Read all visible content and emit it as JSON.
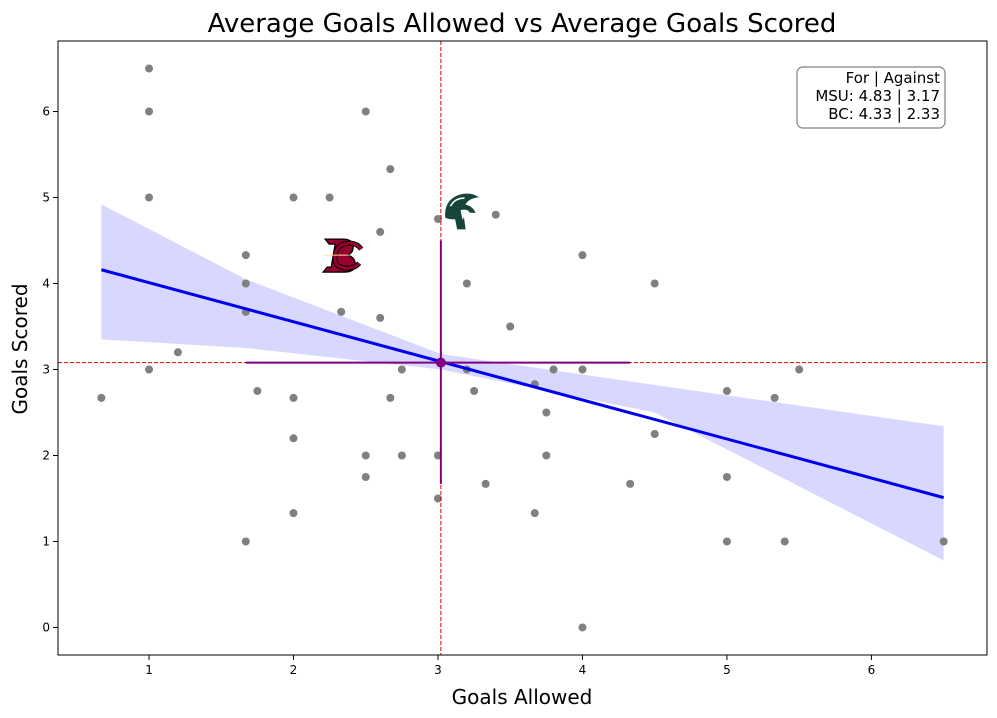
{
  "chart_data": {
    "type": "scatter",
    "title": "Average Goals Allowed vs Average Goals Scored",
    "xlabel": "Goals Allowed",
    "ylabel": "Goals Scored",
    "xlim": [
      0.37,
      6.8
    ],
    "ylim": [
      -0.32,
      6.82
    ],
    "xticks": [
      1,
      2,
      3,
      4,
      5,
      6
    ],
    "yticks": [
      0,
      1,
      2,
      3,
      4,
      5,
      6
    ],
    "grid": false,
    "colors": {
      "points": "#808080",
      "regression": "#0000ee",
      "band": "#d8d8ff",
      "mean_lines": "#dd0000",
      "cross": "#800080"
    },
    "points": [
      {
        "x": 0.67,
        "y": 2.67
      },
      {
        "x": 1.0,
        "y": 6.5
      },
      {
        "x": 1.0,
        "y": 6.0
      },
      {
        "x": 1.0,
        "y": 5.0
      },
      {
        "x": 1.0,
        "y": 3.0
      },
      {
        "x": 1.2,
        "y": 3.2
      },
      {
        "x": 1.67,
        "y": 4.33
      },
      {
        "x": 1.67,
        "y": 4.0
      },
      {
        "x": 1.67,
        "y": 3.67
      },
      {
        "x": 1.67,
        "y": 1.0
      },
      {
        "x": 1.75,
        "y": 2.75
      },
      {
        "x": 2.0,
        "y": 5.0
      },
      {
        "x": 2.0,
        "y": 2.67
      },
      {
        "x": 2.0,
        "y": 2.2
      },
      {
        "x": 2.0,
        "y": 1.33
      },
      {
        "x": 2.25,
        "y": 5.0
      },
      {
        "x": 2.33,
        "y": 3.67
      },
      {
        "x": 2.5,
        "y": 6.0
      },
      {
        "x": 2.5,
        "y": 2.0
      },
      {
        "x": 2.5,
        "y": 1.75
      },
      {
        "x": 2.6,
        "y": 4.6
      },
      {
        "x": 2.6,
        "y": 3.6
      },
      {
        "x": 2.67,
        "y": 5.33
      },
      {
        "x": 2.67,
        "y": 2.67
      },
      {
        "x": 2.75,
        "y": 3.0
      },
      {
        "x": 2.75,
        "y": 2.0
      },
      {
        "x": 3.0,
        "y": 4.75
      },
      {
        "x": 3.0,
        "y": 2.0
      },
      {
        "x": 3.0,
        "y": 1.5
      },
      {
        "x": 3.2,
        "y": 4.0
      },
      {
        "x": 3.2,
        "y": 3.0
      },
      {
        "x": 3.25,
        "y": 2.75
      },
      {
        "x": 3.33,
        "y": 1.67
      },
      {
        "x": 3.4,
        "y": 4.8
      },
      {
        "x": 3.5,
        "y": 3.5
      },
      {
        "x": 3.67,
        "y": 2.83
      },
      {
        "x": 3.67,
        "y": 1.33
      },
      {
        "x": 3.75,
        "y": 2.5
      },
      {
        "x": 3.75,
        "y": 2.0
      },
      {
        "x": 3.8,
        "y": 3.0
      },
      {
        "x": 4.0,
        "y": 4.33
      },
      {
        "x": 4.0,
        "y": 3.0
      },
      {
        "x": 4.0,
        "y": 0.0
      },
      {
        "x": 4.33,
        "y": 1.67
      },
      {
        "x": 4.5,
        "y": 4.0
      },
      {
        "x": 4.5,
        "y": 2.25
      },
      {
        "x": 5.0,
        "y": 2.75
      },
      {
        "x": 5.0,
        "y": 1.75
      },
      {
        "x": 5.0,
        "y": 1.0
      },
      {
        "x": 5.33,
        "y": 2.67
      },
      {
        "x": 5.4,
        "y": 1.0
      },
      {
        "x": 5.5,
        "y": 3.0
      },
      {
        "x": 6.5,
        "y": 1.0
      }
    ],
    "regression": {
      "x": [
        0.67,
        6.5
      ],
      "y": [
        4.16,
        1.51
      ]
    },
    "confidence_band": {
      "x": [
        0.67,
        1.67,
        3.02,
        4.5,
        6.5
      ],
      "lower": [
        3.35,
        3.25,
        3.0,
        2.5,
        0.78
      ],
      "upper": [
        4.92,
        4.05,
        3.18,
        2.82,
        2.34
      ]
    },
    "mean_lines": {
      "x": 3.02,
      "y": 3.08
    },
    "mean_point": {
      "x": 3.02,
      "y": 3.08
    },
    "cross": {
      "h": [
        1.67,
        4.33
      ],
      "v": [
        1.67,
        4.5
      ]
    },
    "team_markers": [
      {
        "team": "BC",
        "icon": "bc-logo-icon",
        "x": 2.33,
        "y": 4.33,
        "color": "#98002e"
      },
      {
        "team": "MSU",
        "icon": "spartan-logo-icon",
        "x": 3.17,
        "y": 4.83,
        "color": "#18453b"
      }
    ],
    "info_box": {
      "header": "For | Against",
      "lines": [
        "MSU: 4.83 | 3.17",
        "BC: 4.33 | 2.33"
      ]
    }
  }
}
